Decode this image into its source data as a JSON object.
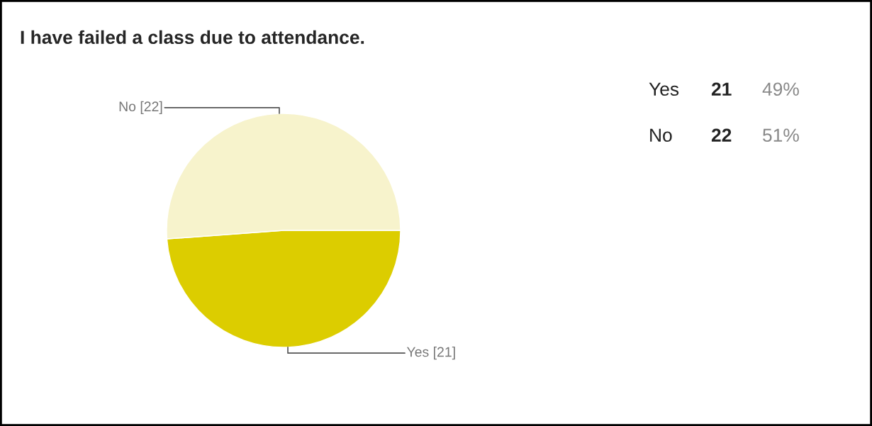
{
  "chart_data": {
    "type": "pie",
    "title": "I have failed a class due to attendance.",
    "categories": [
      "Yes",
      "No"
    ],
    "values": [
      21,
      22
    ],
    "colors": [
      "#dccd00",
      "#f7f3cc"
    ],
    "value_labels": [
      "[21]",
      "[22]"
    ],
    "annotations": [
      "Yes",
      "21",
      "49%",
      "No",
      "22",
      "51%"
    ]
  }
}
